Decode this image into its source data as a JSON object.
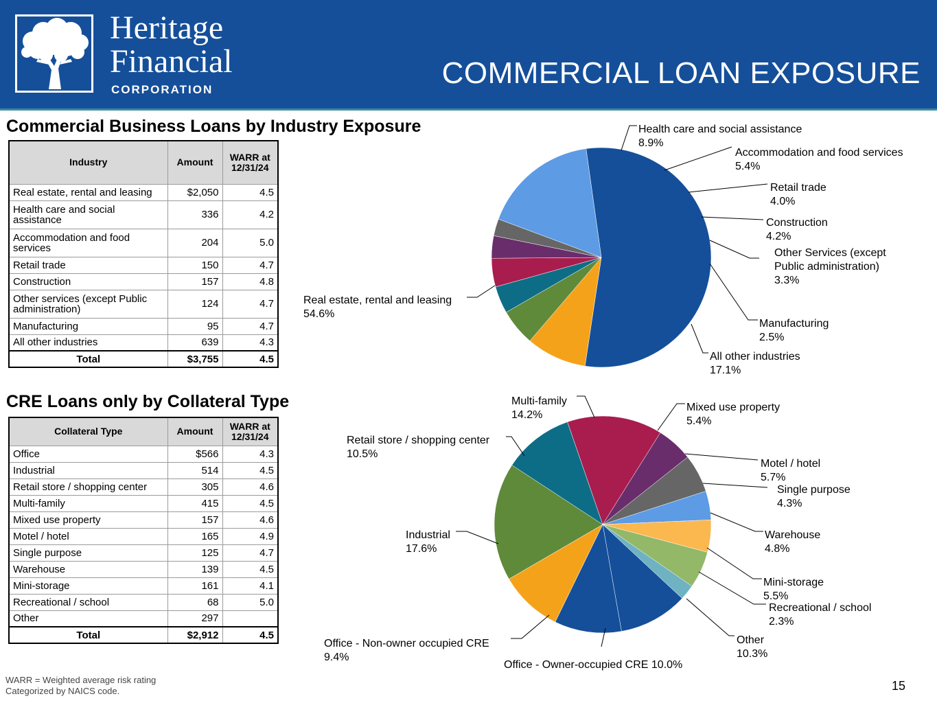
{
  "header": {
    "logo": {
      "line1": "Heritage",
      "line2": "Financial",
      "line3": "CORPORATION"
    },
    "title": "COMMERCIAL LOAN EXPOSURE",
    "colors": {
      "background": "#154f9a",
      "accent_line": "#3c8a9a"
    }
  },
  "section1": {
    "title": "Commercial Business Loans by Industry Exposure",
    "table": {
      "headers": [
        "Industry",
        "Amount",
        "WARR at 12/31/24"
      ],
      "rows": [
        [
          "Real estate, rental and leasing",
          "$2,050",
          "4.5"
        ],
        [
          "Health care and social assistance",
          "336",
          "4.2"
        ],
        [
          "Accommodation and food services",
          "204",
          "5.0"
        ],
        [
          "Retail trade",
          "150",
          "4.7"
        ],
        [
          "Construction",
          "157",
          "4.8"
        ],
        [
          "Other services (except Public administration)",
          "124",
          "4.7"
        ],
        [
          "Manufacturing",
          "95",
          "4.7"
        ],
        [
          "All other industries",
          "639",
          "4.3"
        ]
      ],
      "total": [
        "Total",
        "$3,755",
        "4.5"
      ]
    }
  },
  "section2": {
    "title": "CRE Loans only by Collateral Type",
    "table": {
      "headers": [
        "Collateral Type",
        "Amount",
        "WARR at 12/31/24"
      ],
      "rows": [
        [
          "Office",
          "$566",
          "4.3"
        ],
        [
          "Industrial",
          "514",
          "4.5"
        ],
        [
          "Retail store / shopping center",
          "305",
          "4.6"
        ],
        [
          "Multi-family",
          "415",
          "4.5"
        ],
        [
          "Mixed use property",
          "157",
          "4.6"
        ],
        [
          "Motel / hotel",
          "165",
          "4.9"
        ],
        [
          "Single purpose",
          "125",
          "4.7"
        ],
        [
          "Warehouse",
          "139",
          "4.5"
        ],
        [
          "Mini-storage",
          "161",
          "4.1"
        ],
        [
          "Recreational / school",
          "68",
          "5.0"
        ],
        [
          "Other",
          "297",
          ""
        ]
      ],
      "total": [
        "Total",
        "$2,912",
        "4.5"
      ]
    }
  },
  "chart_data": [
    {
      "type": "pie",
      "slices": [
        {
          "label": [
            "Real estate, rental and leasing"
          ],
          "pct": "54.6%",
          "value": 54.6,
          "color": "#154f9a"
        },
        {
          "label": [
            "Health care and social assistance"
          ],
          "pct": "8.9%",
          "value": 8.9,
          "color": "#f5a21b"
        },
        {
          "label": [
            "Accommodation and food services"
          ],
          "pct": "5.4%",
          "value": 5.4,
          "color": "#5f8a3a"
        },
        {
          "label": [
            "Retail trade"
          ],
          "pct": "4.0%",
          "value": 4.0,
          "color": "#0e6d86"
        },
        {
          "label": [
            "Construction"
          ],
          "pct": "4.2%",
          "value": 4.2,
          "color": "#a81d4e"
        },
        {
          "label": [
            "Other Services (except",
            "Public administration)"
          ],
          "pct": "3.3%",
          "value": 3.3,
          "color": "#6a2d6c"
        },
        {
          "label": [
            "Manufacturing"
          ],
          "pct": "2.5%",
          "value": 2.5,
          "color": "#666666"
        },
        {
          "label": [
            "All other industries"
          ],
          "pct": "17.1%",
          "value": 17.1,
          "color": "#5d9be4"
        }
      ]
    },
    {
      "type": "pie",
      "slices": [
        {
          "label": [
            "Multi-family"
          ],
          "pct": "14.2%",
          "value": 14.2,
          "color": "#a81d4e"
        },
        {
          "label": [
            "Mixed use property"
          ],
          "pct": "5.4%",
          "value": 5.4,
          "color": "#6a2d6c"
        },
        {
          "label": [
            "Motel / hotel"
          ],
          "pct": "5.7%",
          "value": 5.7,
          "color": "#666666"
        },
        {
          "label": [
            "Single purpose"
          ],
          "pct": "4.3%",
          "value": 4.3,
          "color": "#5d9be4"
        },
        {
          "label": [
            "Warehouse"
          ],
          "pct": "4.8%",
          "value": 4.8,
          "color": "#fbb84f"
        },
        {
          "label": [
            "Mini-storage"
          ],
          "pct": "5.5%",
          "value": 5.5,
          "color": "#92b868"
        },
        {
          "label": [
            "Recreational / school"
          ],
          "pct": "2.3%",
          "value": 2.3,
          "color": "#6fb2c2"
        },
        {
          "label": [
            "Other"
          ],
          "pct": "10.3%",
          "value": 10.3,
          "color": "#154f9a"
        },
        {
          "label": [
            "Office - Owner-occupied CRE 10.0%"
          ],
          "pct": "",
          "value": 10.0,
          "color": "#154f9a"
        },
        {
          "label": [
            "Office - Non-owner occupied CRE"
          ],
          "pct": "9.4%",
          "value": 9.4,
          "color": "#f5a21b"
        },
        {
          "label": [
            "Industrial"
          ],
          "pct": "17.6%",
          "value": 17.6,
          "color": "#5f8a3a"
        },
        {
          "label": [
            "Retail store / shopping center"
          ],
          "pct": "10.5%",
          "value": 10.5,
          "color": "#0e6d86"
        }
      ]
    }
  ],
  "footnote": {
    "line1": "WARR = Weighted average risk rating",
    "line2": "Categorized by NAICS code."
  },
  "page_number": "15"
}
